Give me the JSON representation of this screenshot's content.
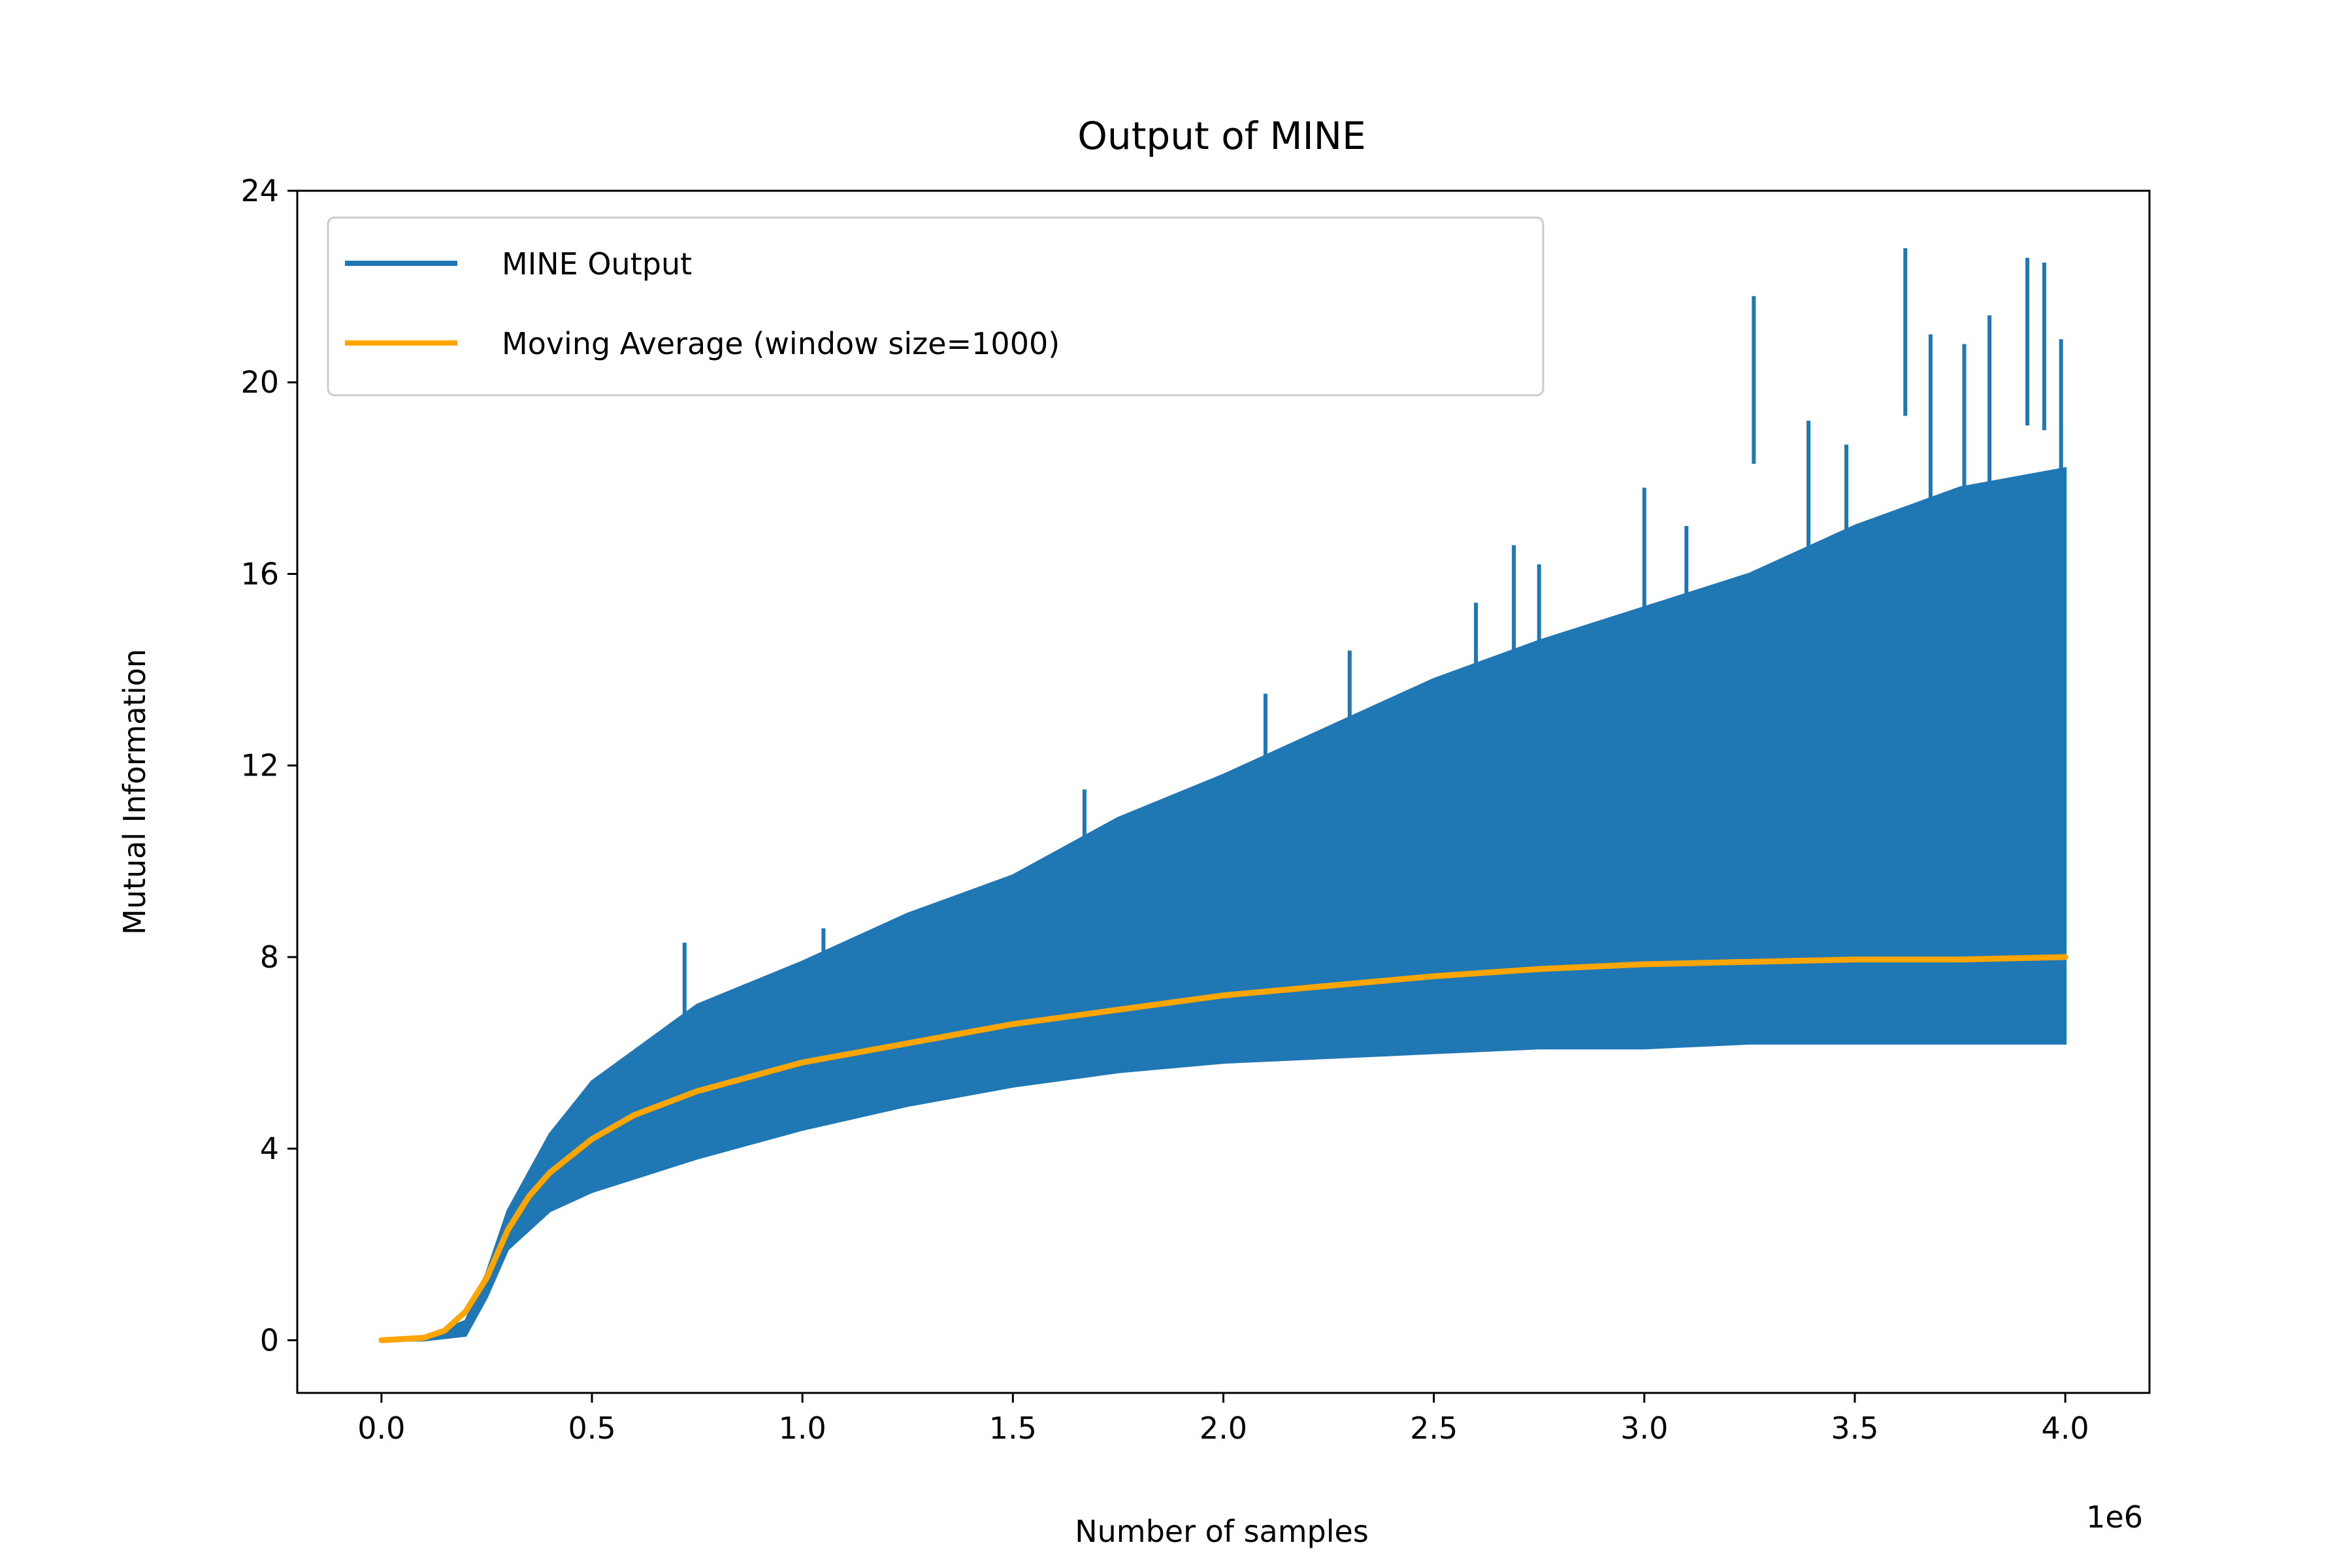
{
  "chart_data": {
    "type": "line",
    "title": "Output of MINE",
    "xlabel": "Number of samples",
    "ylabel": "Mutual Information",
    "x_offset_label": "1e6",
    "xlim": [
      -0.2,
      4.2
    ],
    "ylim": [
      -1.1,
      24
    ],
    "x_ticks": [
      0.0,
      0.5,
      1.0,
      1.5,
      2.0,
      2.5,
      3.0,
      3.5,
      4.0
    ],
    "x_tick_labels": [
      "0.0",
      "0.5",
      "1.0",
      "1.5",
      "2.0",
      "2.5",
      "3.0",
      "3.5",
      "4.0"
    ],
    "y_ticks": [
      0,
      4,
      8,
      12,
      16,
      20,
      24
    ],
    "y_tick_labels": [
      "0",
      "4",
      "8",
      "12",
      "16",
      "20",
      "24"
    ],
    "grid": false,
    "legend_position": "top-left",
    "series": [
      {
        "name": "MINE Output",
        "color": "#1f77b4",
        "x": [
          0.0,
          0.1,
          0.2,
          0.25,
          0.3,
          0.4,
          0.5,
          0.75,
          1.0,
          1.25,
          1.5,
          1.75,
          2.0,
          2.25,
          2.5,
          2.75,
          3.0,
          3.25,
          3.5,
          3.75,
          4.0
        ],
        "upper": [
          0.0,
          0.05,
          0.4,
          1.4,
          2.7,
          4.3,
          5.4,
          7.0,
          7.9,
          8.9,
          9.7,
          10.9,
          11.8,
          12.8,
          13.8,
          14.6,
          15.3,
          16.0,
          17.0,
          17.8,
          18.2
        ],
        "lower": [
          0.0,
          0.0,
          0.1,
          0.9,
          1.9,
          2.7,
          3.1,
          3.8,
          4.4,
          4.9,
          5.3,
          5.6,
          5.8,
          5.9,
          6.0,
          6.1,
          6.1,
          6.2,
          6.2,
          6.2,
          6.2
        ],
        "peaks": [
          {
            "x": 0.72,
            "y": 8.3
          },
          {
            "x": 1.05,
            "y": 8.6
          },
          {
            "x": 1.67,
            "y": 11.5
          },
          {
            "x": 2.1,
            "y": 13.5
          },
          {
            "x": 2.3,
            "y": 14.4
          },
          {
            "x": 2.6,
            "y": 15.4
          },
          {
            "x": 2.69,
            "y": 16.6
          },
          {
            "x": 2.75,
            "y": 16.2
          },
          {
            "x": 3.0,
            "y": 17.8
          },
          {
            "x": 3.1,
            "y": 17.0
          },
          {
            "x": 3.26,
            "y": 21.8
          },
          {
            "x": 3.39,
            "y": 19.2
          },
          {
            "x": 3.48,
            "y": 18.7
          },
          {
            "x": 3.62,
            "y": 22.8
          },
          {
            "x": 3.68,
            "y": 21.0
          },
          {
            "x": 3.76,
            "y": 20.8
          },
          {
            "x": 3.82,
            "y": 21.4
          },
          {
            "x": 3.91,
            "y": 22.6
          },
          {
            "x": 3.95,
            "y": 22.5
          },
          {
            "x": 3.99,
            "y": 20.9
          }
        ]
      },
      {
        "name": "Moving Average (window size=1000)",
        "color": "#ffa500",
        "x": [
          0.0,
          0.1,
          0.15,
          0.2,
          0.25,
          0.3,
          0.35,
          0.4,
          0.5,
          0.6,
          0.75,
          1.0,
          1.25,
          1.5,
          1.75,
          2.0,
          2.25,
          2.5,
          2.75,
          3.0,
          3.25,
          3.5,
          3.75,
          4.0
        ],
        "y": [
          0.0,
          0.05,
          0.2,
          0.6,
          1.3,
          2.3,
          3.0,
          3.5,
          4.2,
          4.7,
          5.2,
          5.8,
          6.2,
          6.6,
          6.9,
          7.2,
          7.4,
          7.6,
          7.75,
          7.85,
          7.9,
          7.95,
          7.95,
          8.0
        ]
      }
    ]
  }
}
